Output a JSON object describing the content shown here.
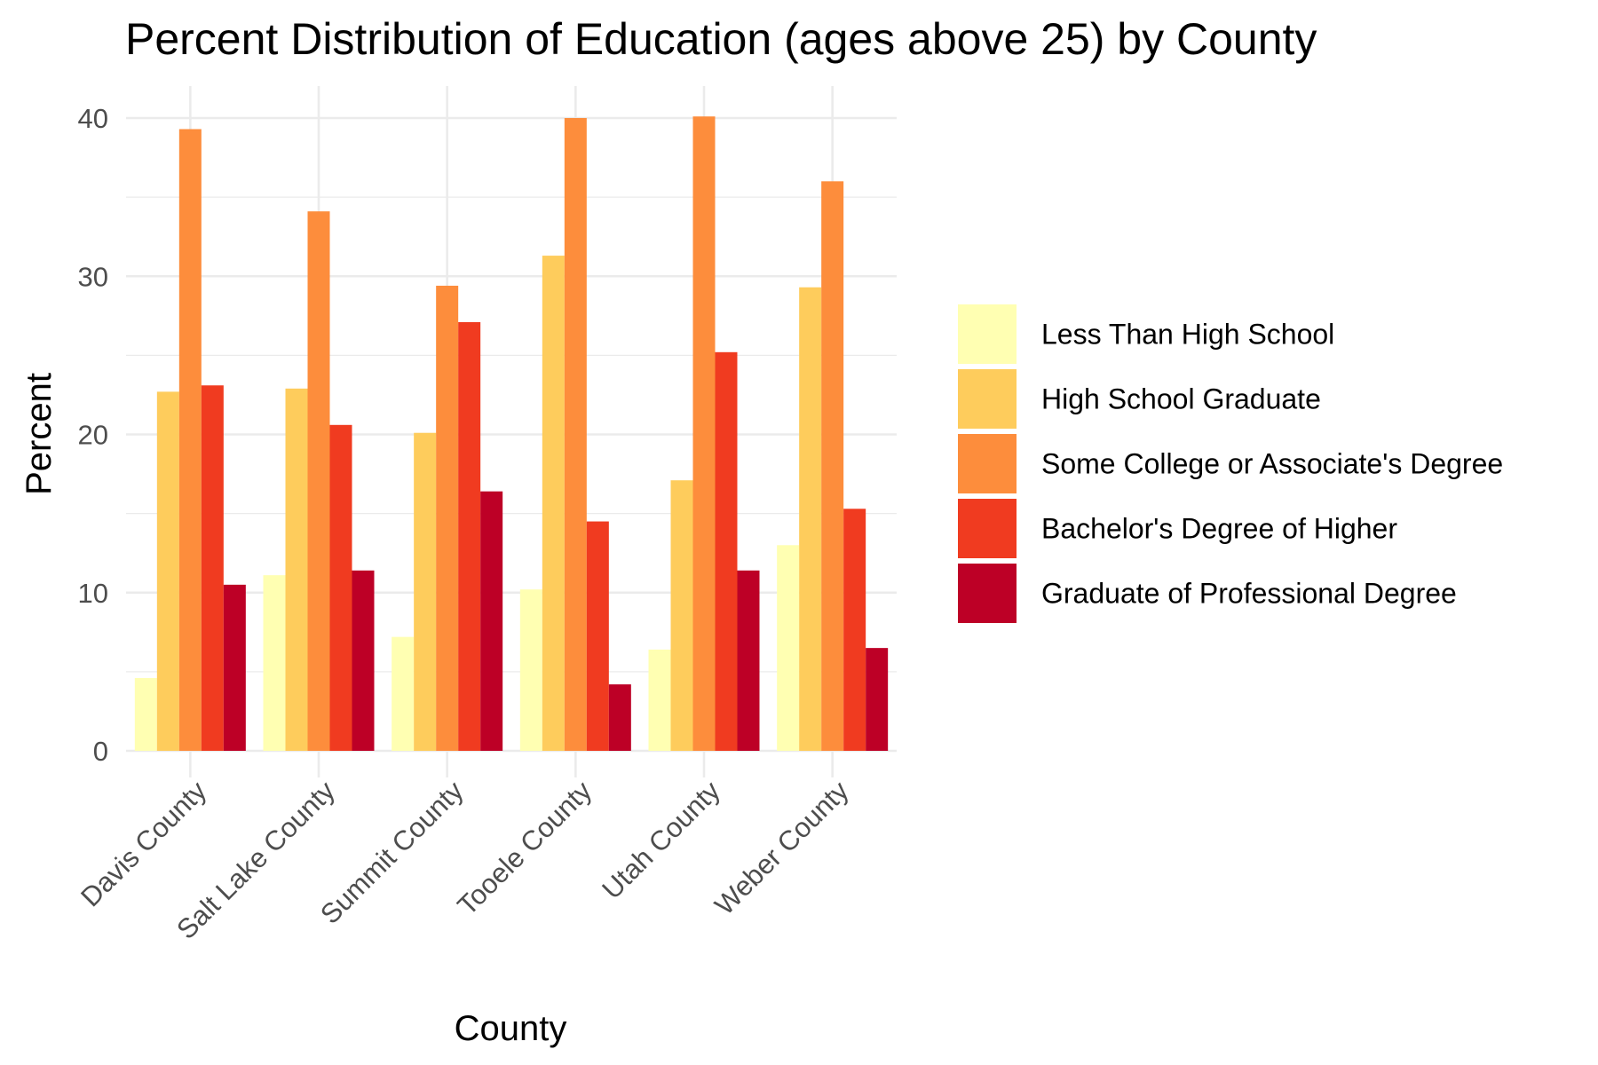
{
  "chart_data": {
    "type": "bar",
    "title": "Percent Distribution of Education (ages above 25) by County",
    "xlabel": "County",
    "ylabel": "Percent",
    "categories": [
      "Davis County",
      "Salt Lake County",
      "Summit County",
      "Tooele County",
      "Utah County",
      "Weber County"
    ],
    "y_ticks": [
      "0",
      "10",
      "20",
      "30",
      "40"
    ],
    "ylim": [
      0,
      40
    ],
    "grid": true,
    "legend_position": "right",
    "series": [
      {
        "name": "Less Than High School",
        "color": "#FFFFB2",
        "values": [
          4.6,
          11.1,
          7.2,
          10.2,
          6.4,
          13.0
        ]
      },
      {
        "name": "High School Graduate",
        "color": "#FECC5C",
        "values": [
          22.7,
          22.9,
          20.1,
          31.3,
          17.1,
          29.3
        ]
      },
      {
        "name": "Some College or Associate's Degree",
        "color": "#FD8D3C",
        "values": [
          39.3,
          34.1,
          29.4,
          40.0,
          40.1,
          36.0
        ]
      },
      {
        "name": "Bachelor's Degree of Higher",
        "color": "#F03B20",
        "values": [
          23.1,
          20.6,
          27.1,
          14.5,
          25.2,
          15.3
        ]
      },
      {
        "name": "Graduate of Professional Degree",
        "color": "#BD0026",
        "values": [
          10.5,
          11.4,
          16.4,
          4.2,
          11.4,
          6.5
        ]
      }
    ]
  }
}
